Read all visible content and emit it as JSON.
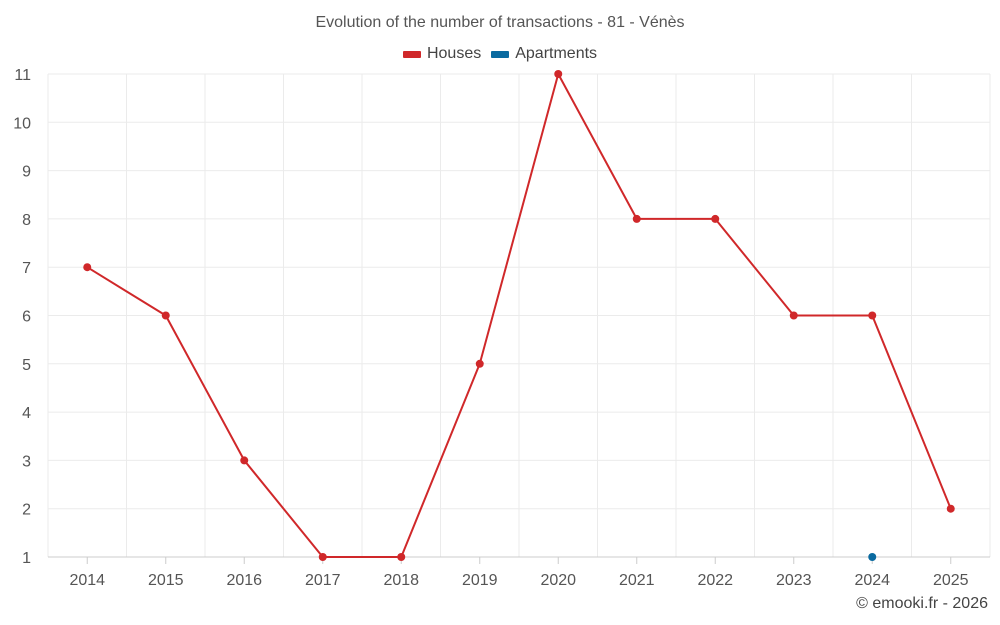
{
  "chart_data": {
    "type": "line",
    "title": "Evolution of the number of transactions - 81 - Vénès",
    "categories": [
      "2014",
      "2015",
      "2016",
      "2017",
      "2018",
      "2019",
      "2020",
      "2021",
      "2022",
      "2023",
      "2024",
      "2025"
    ],
    "series": [
      {
        "name": "Houses",
        "color": "#d0282a",
        "values": [
          7,
          6,
          3,
          1,
          1,
          5,
          11,
          8,
          8,
          6,
          6,
          2
        ]
      },
      {
        "name": "Apartments",
        "color": "#0a6aa0",
        "values": [
          null,
          null,
          null,
          null,
          null,
          null,
          null,
          null,
          null,
          null,
          1,
          null
        ]
      }
    ],
    "y_ticks": [
      "1",
      "2",
      "3",
      "4",
      "5",
      "6",
      "7",
      "8",
      "9",
      "10",
      "11"
    ],
    "ylim": [
      1,
      11
    ],
    "grid": true,
    "legend_position": "top-center",
    "xlabel": "",
    "ylabel": ""
  },
  "footer": {
    "credit": "© emooki.fr - 2026"
  }
}
